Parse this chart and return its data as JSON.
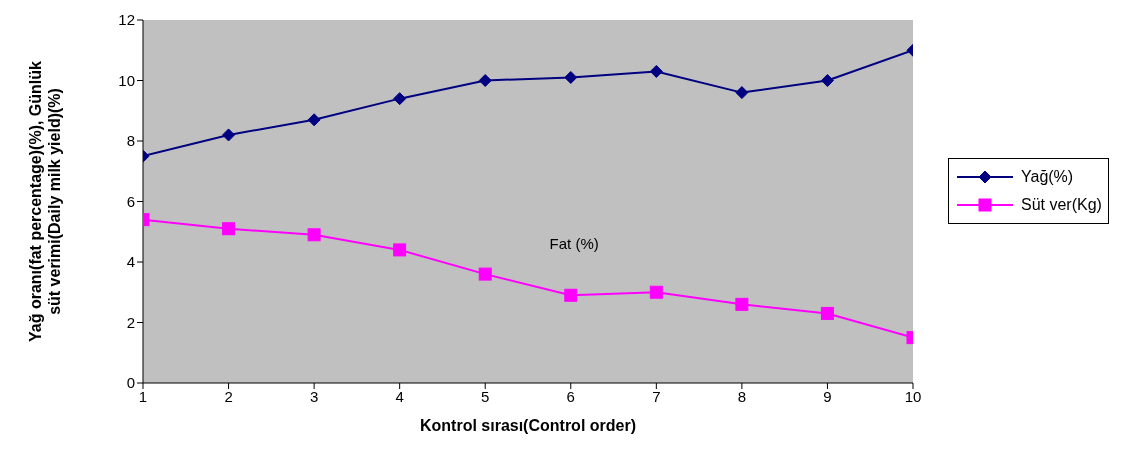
{
  "chart_data": {
    "type": "line",
    "xlabel": "Kontrol sırası(Control order)",
    "ylabel": "Yağ oranı(fat percentage)(%), Günlük süt verimi(Daily milk yield)(%)",
    "x": [
      1,
      2,
      3,
      4,
      5,
      6,
      7,
      8,
      9,
      10
    ],
    "xlim": [
      1,
      10
    ],
    "xticks": [
      1,
      2,
      3,
      4,
      5,
      6,
      7,
      8,
      9,
      10
    ],
    "ylim": [
      0,
      12
    ],
    "yticks": [
      0,
      2,
      4,
      6,
      8,
      10,
      12
    ],
    "grid": false,
    "legend": "right",
    "annotations": [
      "Fat (%)"
    ],
    "series": [
      {
        "name": "Yağ(%)",
        "color": "#000080",
        "marker": "diamond",
        "values": [
          7.5,
          8.2,
          8.7,
          9.4,
          10.0,
          10.1,
          10.3,
          9.6,
          10.0,
          11.0
        ]
      },
      {
        "name": "Süt ver(Kg)",
        "color": "#ff00ff",
        "marker": "square",
        "values": [
          5.4,
          5.1,
          4.9,
          4.4,
          3.6,
          2.9,
          3.0,
          2.6,
          2.3,
          1.5
        ]
      }
    ]
  }
}
